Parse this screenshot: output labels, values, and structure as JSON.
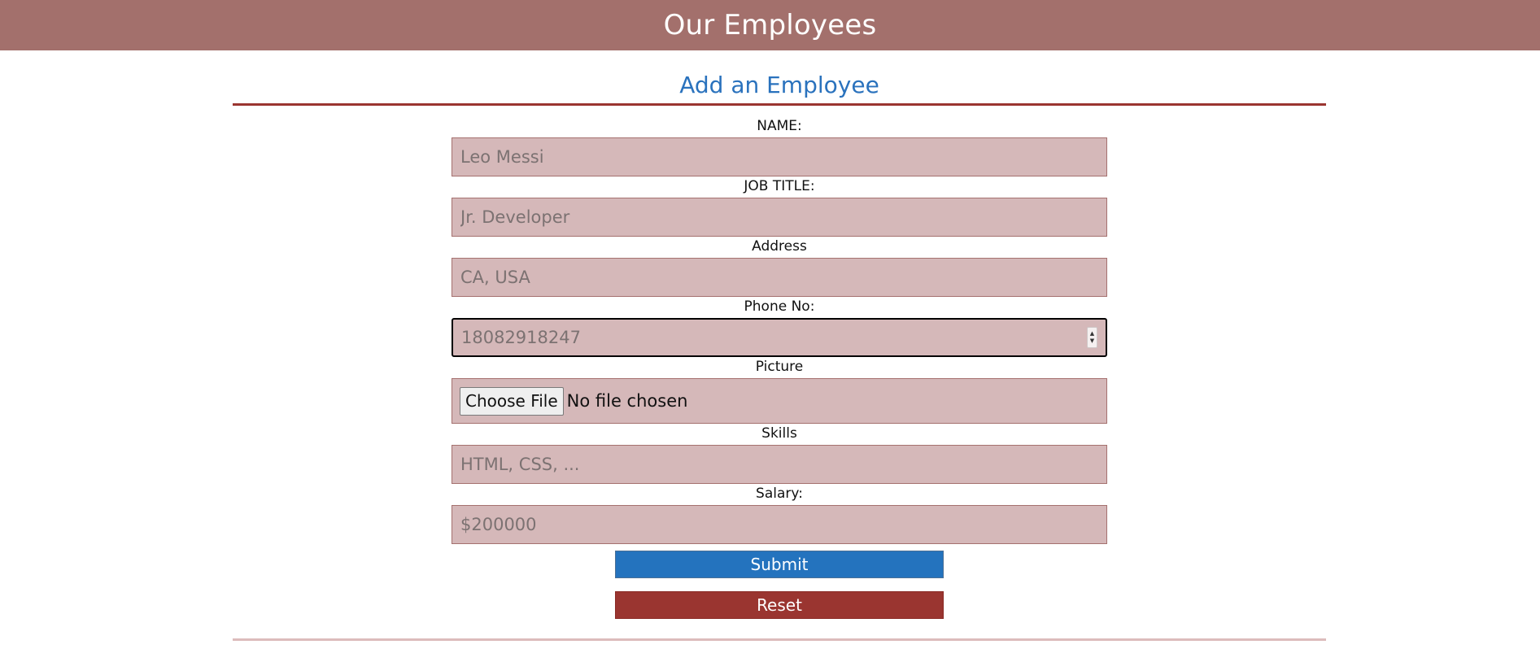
{
  "header": {
    "title": "Our Employees"
  },
  "form": {
    "title": "Add an Employee",
    "fields": {
      "name": {
        "label": "NAME:",
        "placeholder": "Leo Messi"
      },
      "job_title": {
        "label": "JOB TITLE:",
        "placeholder": "Jr. Developer"
      },
      "address": {
        "label": "Address",
        "placeholder": "CA, USA"
      },
      "phone": {
        "label": "Phone No:",
        "placeholder": "18082918247"
      },
      "picture": {
        "label": "Picture",
        "button_label": "Choose File",
        "status": "No file chosen"
      },
      "skills": {
        "label": "Skills",
        "placeholder": "HTML, CSS, ..."
      },
      "salary": {
        "label": "Salary:",
        "placeholder": "$200000"
      }
    },
    "submit_label": "Submit",
    "reset_label": "Reset"
  },
  "colors": {
    "header_bg": "#a3706c",
    "title_blue": "#2a72bd",
    "accent_red": "#9a3530",
    "field_bg": "#d5b8b9",
    "submit_bg": "#2473be"
  },
  "icons": {
    "phone_spinner": "spinner-arrows-icon"
  }
}
